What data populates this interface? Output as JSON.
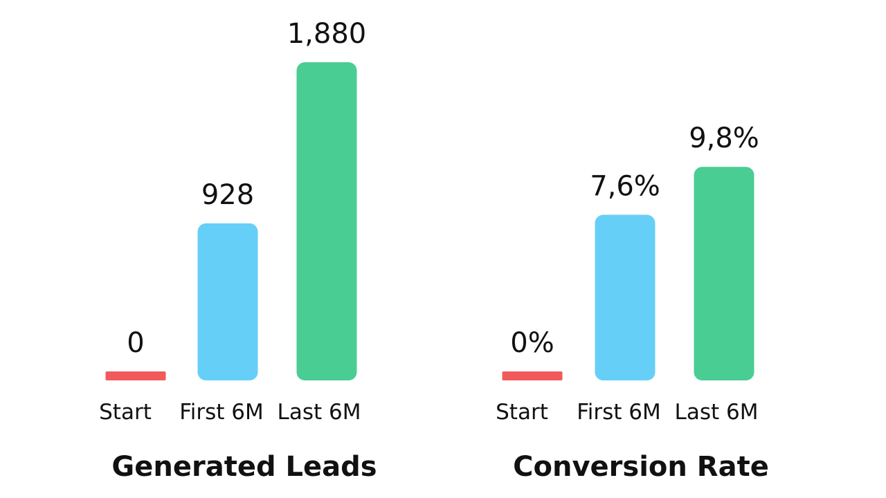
{
  "chart_data": [
    {
      "type": "bar",
      "title": "Generated Leads",
      "categories": [
        "Start",
        "First 6M",
        "Last 6M"
      ],
      "values": [
        0,
        928,
        1880
      ],
      "value_labels": [
        "0",
        "928",
        "1,880"
      ],
      "colors": [
        "#f05a5b",
        "#66cff7",
        "#4acd92"
      ],
      "ylim": [
        0,
        1880
      ],
      "grid": false,
      "axes_visible": false
    },
    {
      "type": "bar",
      "title": "Conversion Rate",
      "categories": [
        "Start",
        "First 6M",
        "Last 6M"
      ],
      "values": [
        0,
        7.6,
        9.8
      ],
      "value_labels": [
        "0%",
        "7,6%",
        "9,8%"
      ],
      "colors": [
        "#f05a5b",
        "#66cff7",
        "#4acd92"
      ],
      "ylim": [
        0,
        14.6
      ],
      "grid": false,
      "axes_visible": false
    }
  ]
}
